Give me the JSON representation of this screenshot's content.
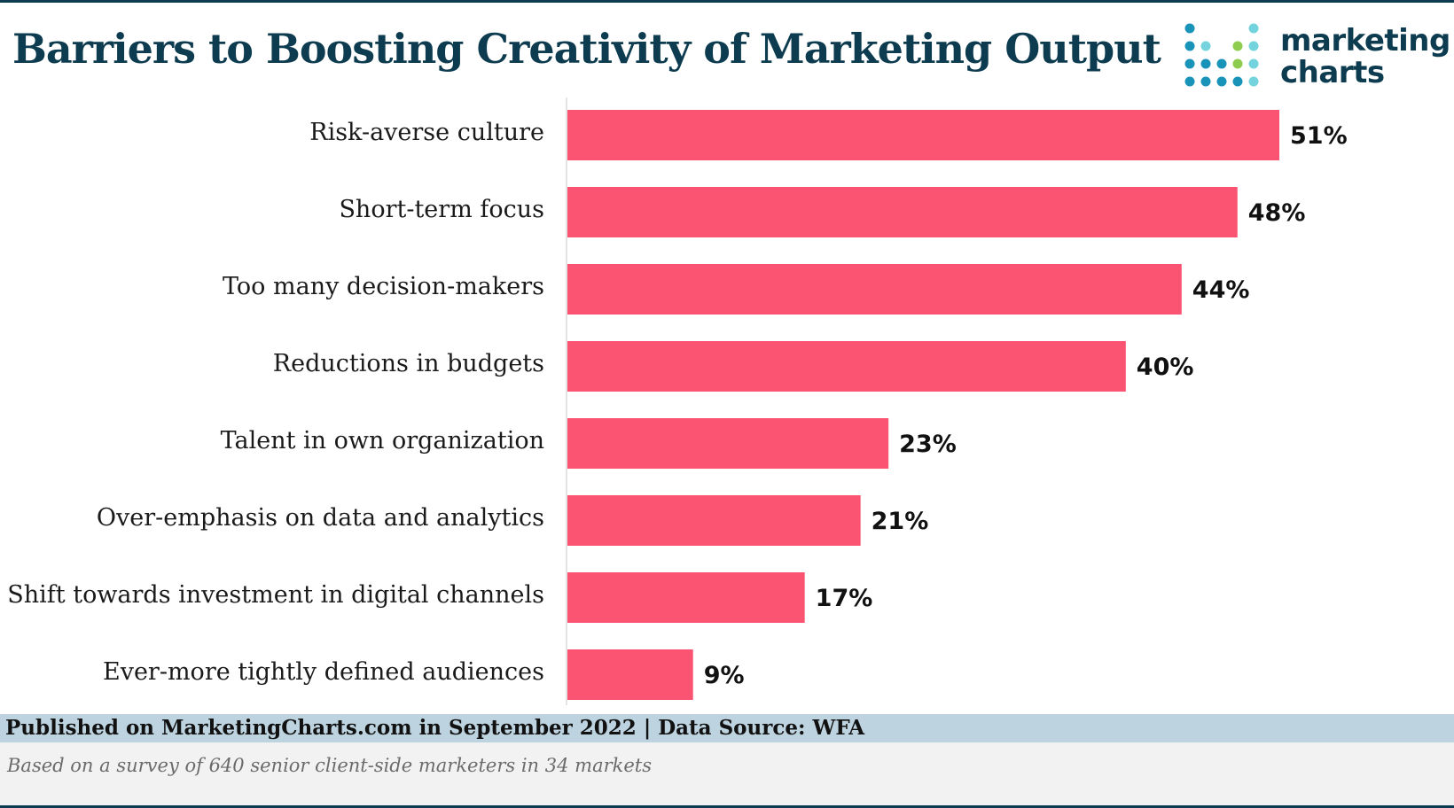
{
  "title": "Barriers to Boosting Creativity of Marketing Output",
  "logo": {
    "line1": "marketing",
    "line2": "charts"
  },
  "footer": {
    "published": "Published on MarketingCharts.com in September 2022 | Data Source: WFA",
    "note": "Based on a survey of 640 senior client-side marketers in 34 markets"
  },
  "colors": {
    "bar": "#fb5472",
    "title": "#0d3b4f",
    "footer_band": "#bdd3df"
  },
  "chart_data": {
    "type": "bar",
    "orientation": "horizontal",
    "categories": [
      "Risk-averse culture",
      "Short-term focus",
      "Too many decision-makers",
      "Reductions in budgets",
      "Talent in own organization",
      "Over-emphasis on data and analytics",
      "Shift towards investment in digital channels",
      "Ever-more tightly defined audiences"
    ],
    "values": [
      51,
      48,
      44,
      40,
      23,
      21,
      17,
      9
    ],
    "value_labels": [
      "51%",
      "48%",
      "44%",
      "40%",
      "23%",
      "21%",
      "17%",
      "9%"
    ],
    "xlim": [
      0,
      51
    ],
    "unit": "%",
    "grid": false,
    "legend": "none"
  }
}
